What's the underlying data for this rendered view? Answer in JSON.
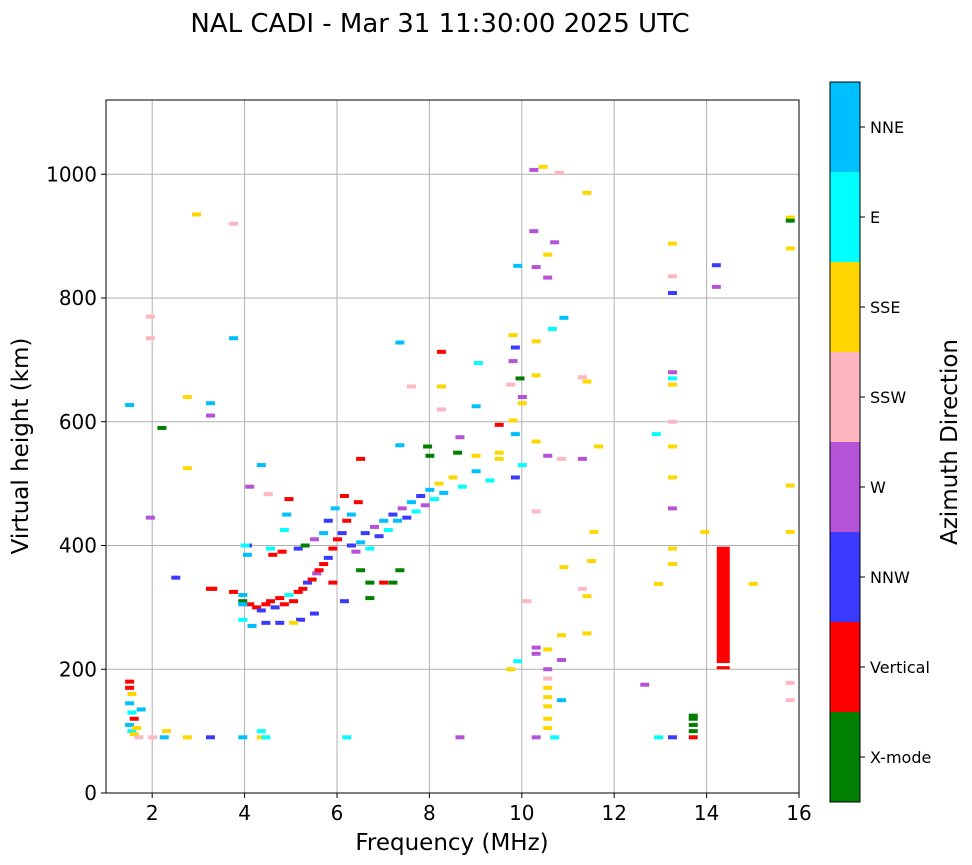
{
  "chart_data": {
    "type": "scatter",
    "title": "NAL CADI - Mar 31 11:30:00 2025 UTC",
    "xlabel": "Frequency (MHz)",
    "ylabel": "Virtual height (km)",
    "xlim": [
      1,
      16
    ],
    "ylim": [
      0,
      1120
    ],
    "xticks": [
      "2",
      "4",
      "6",
      "8",
      "10",
      "12",
      "14",
      "16"
    ],
    "yticks": [
      "0",
      "200",
      "400",
      "600",
      "800",
      "1000"
    ],
    "grid": true,
    "colorbar": {
      "label": "Azimuth Direction",
      "categories": [
        {
          "name": "X-mode",
          "color": "#008000"
        },
        {
          "name": "Vertical",
          "color": "#ff0000"
        },
        {
          "name": "NNW",
          "color": "#3a3aff"
        },
        {
          "name": "W",
          "color": "#b553d6"
        },
        {
          "name": "SSW",
          "color": "#ffb6c1"
        },
        {
          "name": "SSE",
          "color": "#ffd700"
        },
        {
          "name": "E",
          "color": "#00ffff"
        },
        {
          "name": "NNE",
          "color": "#00bfff"
        }
      ]
    },
    "points": [
      {
        "f": 1.5,
        "h": 180,
        "c": "Vertical"
      },
      {
        "f": 1.5,
        "h": 170,
        "c": "Vertical"
      },
      {
        "f": 1.55,
        "h": 160,
        "c": "SSE"
      },
      {
        "f": 1.5,
        "h": 145,
        "c": "NNE"
      },
      {
        "f": 1.55,
        "h": 130,
        "c": "E"
      },
      {
        "f": 1.6,
        "h": 120,
        "c": "Vertical"
      },
      {
        "f": 1.5,
        "h": 110,
        "c": "NNE"
      },
      {
        "f": 1.55,
        "h": 100,
        "c": "E"
      },
      {
        "f": 1.6,
        "h": 95,
        "c": "SSE"
      },
      {
        "f": 1.7,
        "h": 90,
        "c": "SSW"
      },
      {
        "f": 1.75,
        "h": 135,
        "c": "NNE"
      },
      {
        "f": 1.65,
        "h": 105,
        "c": "SSE"
      },
      {
        "f": 2.0,
        "h": 90,
        "c": "SSW"
      },
      {
        "f": 2.25,
        "h": 90,
        "c": "NNE"
      },
      {
        "f": 2.3,
        "h": 100,
        "c": "SSE"
      },
      {
        "f": 2.75,
        "h": 90,
        "c": "SSE"
      },
      {
        "f": 3.25,
        "h": 90,
        "c": "NNW"
      },
      {
        "f": 3.95,
        "h": 90,
        "c": "NNE"
      },
      {
        "f": 4.35,
        "h": 90,
        "c": "SSE"
      },
      {
        "f": 4.35,
        "h": 100,
        "c": "E"
      },
      {
        "f": 4.45,
        "h": 90,
        "c": "E"
      },
      {
        "f": 6.2,
        "h": 90,
        "c": "E"
      },
      {
        "f": 8.65,
        "h": 90,
        "c": "W"
      },
      {
        "f": 10.3,
        "h": 90,
        "c": "W"
      },
      {
        "f": 10.7,
        "h": 90,
        "c": "E"
      },
      {
        "f": 12.95,
        "h": 90,
        "c": "E"
      },
      {
        "f": 13.25,
        "h": 90,
        "c": "NNW"
      },
      {
        "f": 13.7,
        "h": 90,
        "c": "Vertical"
      },
      {
        "f": 13.7,
        "h": 100,
        "c": "X-mode"
      },
      {
        "f": 13.7,
        "h": 110,
        "c": "X-mode"
      },
      {
        "f": 13.7,
        "h": 120,
        "c": "X-mode"
      },
      {
        "f": 13.7,
        "h": 125,
        "c": "X-mode"
      },
      {
        "f": 1.5,
        "h": 627,
        "c": "NNE"
      },
      {
        "f": 2.2,
        "h": 590,
        "c": "X-mode"
      },
      {
        "f": 2.5,
        "h": 348,
        "c": "NNW"
      },
      {
        "f": 2.75,
        "h": 640,
        "c": "SSE"
      },
      {
        "f": 2.75,
        "h": 525,
        "c": "SSE"
      },
      {
        "f": 2.95,
        "h": 935,
        "c": "SSE"
      },
      {
        "f": 1.95,
        "h": 770,
        "c": "SSW"
      },
      {
        "f": 1.95,
        "h": 735,
        "c": "SSW"
      },
      {
        "f": 1.95,
        "h": 445,
        "c": "W"
      },
      {
        "f": 3.25,
        "h": 630,
        "c": "NNE"
      },
      {
        "f": 3.25,
        "h": 610,
        "c": "W"
      },
      {
        "f": 3.75,
        "h": 920,
        "c": "SSW"
      },
      {
        "f": 3.75,
        "h": 735,
        "c": "NNE"
      },
      {
        "f": 3.25,
        "h": 330,
        "c": "Vertical"
      },
      {
        "f": 4.35,
        "h": 530,
        "c": "NNE"
      },
      {
        "f": 4.1,
        "h": 495,
        "c": "W"
      },
      {
        "f": 4.5,
        "h": 483,
        "c": "SSW"
      },
      {
        "f": 3.75,
        "h": 325,
        "c": "Vertical"
      },
      {
        "f": 3.95,
        "h": 320,
        "c": "NNE"
      },
      {
        "f": 3.95,
        "h": 310,
        "c": "X-mode"
      },
      {
        "f": 4.1,
        "h": 305,
        "c": "Vertical"
      },
      {
        "f": 4.25,
        "h": 300,
        "c": "Vertical"
      },
      {
        "f": 4.35,
        "h": 295,
        "c": "NNW"
      },
      {
        "f": 4.45,
        "h": 305,
        "c": "Vertical"
      },
      {
        "f": 4.55,
        "h": 310,
        "c": "Vertical"
      },
      {
        "f": 4.65,
        "h": 300,
        "c": "NNW"
      },
      {
        "f": 4.75,
        "h": 315,
        "c": "Vertical"
      },
      {
        "f": 4.85,
        "h": 305,
        "c": "Vertical"
      },
      {
        "f": 4.95,
        "h": 320,
        "c": "E"
      },
      {
        "f": 5.05,
        "h": 310,
        "c": "Vertical"
      },
      {
        "f": 5.15,
        "h": 325,
        "c": "Vertical"
      },
      {
        "f": 5.25,
        "h": 330,
        "c": "Vertical"
      },
      {
        "f": 5.35,
        "h": 340,
        "c": "NNW"
      },
      {
        "f": 5.45,
        "h": 345,
        "c": "Vertical"
      },
      {
        "f": 5.55,
        "h": 355,
        "c": "W"
      },
      {
        "f": 5.6,
        "h": 360,
        "c": "Vertical"
      },
      {
        "f": 5.7,
        "h": 370,
        "c": "Vertical"
      },
      {
        "f": 5.8,
        "h": 380,
        "c": "NNW"
      },
      {
        "f": 5.9,
        "h": 395,
        "c": "Vertical"
      },
      {
        "f": 6.0,
        "h": 410,
        "c": "Vertical"
      },
      {
        "f": 6.1,
        "h": 420,
        "c": "NNW"
      },
      {
        "f": 6.2,
        "h": 440,
        "c": "Vertical"
      },
      {
        "f": 6.3,
        "h": 400,
        "c": "NNW"
      },
      {
        "f": 6.4,
        "h": 390,
        "c": "W"
      },
      {
        "f": 6.5,
        "h": 405,
        "c": "NNE"
      },
      {
        "f": 6.6,
        "h": 420,
        "c": "NNW"
      },
      {
        "f": 6.7,
        "h": 395,
        "c": "E"
      },
      {
        "f": 6.8,
        "h": 430,
        "c": "W"
      },
      {
        "f": 6.9,
        "h": 415,
        "c": "NNW"
      },
      {
        "f": 7.0,
        "h": 440,
        "c": "NNE"
      },
      {
        "f": 7.1,
        "h": 425,
        "c": "E"
      },
      {
        "f": 7.2,
        "h": 450,
        "c": "NNW"
      },
      {
        "f": 7.3,
        "h": 440,
        "c": "NNE"
      },
      {
        "f": 7.4,
        "h": 460,
        "c": "W"
      },
      {
        "f": 7.5,
        "h": 445,
        "c": "NNW"
      },
      {
        "f": 7.6,
        "h": 470,
        "c": "NNE"
      },
      {
        "f": 7.7,
        "h": 455,
        "c": "E"
      },
      {
        "f": 7.8,
        "h": 480,
        "c": "NNW"
      },
      {
        "f": 7.9,
        "h": 465,
        "c": "W"
      },
      {
        "f": 8.0,
        "h": 490,
        "c": "NNE"
      },
      {
        "f": 8.1,
        "h": 475,
        "c": "E"
      },
      {
        "f": 8.2,
        "h": 500,
        "c": "SSE"
      },
      {
        "f": 8.3,
        "h": 485,
        "c": "NNE"
      },
      {
        "f": 8.5,
        "h": 510,
        "c": "SSE"
      },
      {
        "f": 8.7,
        "h": 495,
        "c": "E"
      },
      {
        "f": 9.0,
        "h": 520,
        "c": "NNE"
      },
      {
        "f": 9.3,
        "h": 505,
        "c": "E"
      },
      {
        "f": 8.0,
        "h": 545,
        "c": "X-mode"
      },
      {
        "f": 7.95,
        "h": 560,
        "c": "X-mode"
      },
      {
        "f": 8.65,
        "h": 575,
        "c": "W"
      },
      {
        "f": 8.6,
        "h": 550,
        "c": "X-mode"
      },
      {
        "f": 8.25,
        "h": 620,
        "c": "SSW"
      },
      {
        "f": 8.25,
        "h": 657,
        "c": "SSE"
      },
      {
        "f": 8.25,
        "h": 713,
        "c": "Vertical"
      },
      {
        "f": 7.35,
        "h": 728,
        "c": "NNE"
      },
      {
        "f": 7.35,
        "h": 562,
        "c": "NNE"
      },
      {
        "f": 7.6,
        "h": 657,
        "c": "SSW"
      },
      {
        "f": 6.5,
        "h": 540,
        "c": "Vertical"
      },
      {
        "f": 6.45,
        "h": 470,
        "c": "Vertical"
      },
      {
        "f": 6.15,
        "h": 480,
        "c": "Vertical"
      },
      {
        "f": 6.3,
        "h": 450,
        "c": "NNE"
      },
      {
        "f": 6.5,
        "h": 360,
        "c": "X-mode"
      },
      {
        "f": 6.7,
        "h": 340,
        "c": "X-mode"
      },
      {
        "f": 6.7,
        "h": 315,
        "c": "X-mode"
      },
      {
        "f": 7.0,
        "h": 340,
        "c": "Vertical"
      },
      {
        "f": 7.2,
        "h": 340,
        "c": "X-mode"
      },
      {
        "f": 7.35,
        "h": 360,
        "c": "X-mode"
      },
      {
        "f": 6.15,
        "h": 310,
        "c": "NNW"
      },
      {
        "f": 5.9,
        "h": 340,
        "c": "Vertical"
      },
      {
        "f": 5.5,
        "h": 290,
        "c": "NNW"
      },
      {
        "f": 5.2,
        "h": 280,
        "c": "NNW"
      },
      {
        "f": 4.75,
        "h": 275,
        "c": "NNW"
      },
      {
        "f": 4.45,
        "h": 275,
        "c": "NNW"
      },
      {
        "f": 4.15,
        "h": 270,
        "c": "NNE"
      },
      {
        "f": 5.05,
        "h": 275,
        "c": "SSE"
      },
      {
        "f": 4.9,
        "h": 450,
        "c": "NNE"
      },
      {
        "f": 4.85,
        "h": 425,
        "c": "E"
      },
      {
        "f": 4.55,
        "h": 395,
        "c": "E"
      },
      {
        "f": 4.6,
        "h": 385,
        "c": "Vertical"
      },
      {
        "f": 4.8,
        "h": 390,
        "c": "Vertical"
      },
      {
        "f": 4.05,
        "h": 385,
        "c": "NNE"
      },
      {
        "f": 4.05,
        "h": 400,
        "c": "NNW"
      },
      {
        "f": 5.15,
        "h": 395,
        "c": "NNW"
      },
      {
        "f": 5.3,
        "h": 400,
        "c": "X-mode"
      },
      {
        "f": 5.5,
        "h": 410,
        "c": "W"
      },
      {
        "f": 5.7,
        "h": 420,
        "c": "NNE"
      },
      {
        "f": 5.8,
        "h": 440,
        "c": "NNW"
      },
      {
        "f": 5.95,
        "h": 460,
        "c": "NNE"
      },
      {
        "f": 4.95,
        "h": 475,
        "c": "Vertical"
      },
      {
        "f": 4.0,
        "h": 400,
        "c": "E"
      },
      {
        "f": 3.95,
        "h": 305,
        "c": "NNE"
      },
      {
        "f": 3.95,
        "h": 280,
        "c": "E"
      },
      {
        "f": 3.3,
        "h": 330,
        "c": "Vertical"
      },
      {
        "f": 9.0,
        "h": 625,
        "c": "NNE"
      },
      {
        "f": 9.0,
        "h": 545,
        "c": "SSE"
      },
      {
        "f": 9.05,
        "h": 695,
        "c": "E"
      },
      {
        "f": 9.5,
        "h": 595,
        "c": "Vertical"
      },
      {
        "f": 9.5,
        "h": 550,
        "c": "SSE"
      },
      {
        "f": 9.5,
        "h": 540,
        "c": "SSE"
      },
      {
        "f": 9.8,
        "h": 740,
        "c": "SSE"
      },
      {
        "f": 9.8,
        "h": 698,
        "c": "W"
      },
      {
        "f": 9.8,
        "h": 602,
        "c": "SSE"
      },
      {
        "f": 9.85,
        "h": 720,
        "c": "NNW"
      },
      {
        "f": 9.85,
        "h": 510,
        "c": "NNW"
      },
      {
        "f": 9.75,
        "h": 660,
        "c": "SSW"
      },
      {
        "f": 9.9,
        "h": 852,
        "c": "NNE"
      },
      {
        "f": 9.95,
        "h": 670,
        "c": "X-mode"
      },
      {
        "f": 10.0,
        "h": 640,
        "c": "W"
      },
      {
        "f": 10.0,
        "h": 630,
        "c": "SSE"
      },
      {
        "f": 10.0,
        "h": 530,
        "c": "E"
      },
      {
        "f": 9.85,
        "h": 580,
        "c": "NNE"
      },
      {
        "f": 9.75,
        "h": 200,
        "c": "SSE"
      },
      {
        "f": 9.9,
        "h": 213,
        "c": "E"
      },
      {
        "f": 10.1,
        "h": 310,
        "c": "SSW"
      },
      {
        "f": 10.25,
        "h": 1007,
        "c": "W"
      },
      {
        "f": 10.45,
        "h": 1012,
        "c": "SSE"
      },
      {
        "f": 10.8,
        "h": 1002,
        "c": "SSW"
      },
      {
        "f": 10.25,
        "h": 908,
        "c": "W"
      },
      {
        "f": 10.7,
        "h": 890,
        "c": "W"
      },
      {
        "f": 10.55,
        "h": 870,
        "c": "SSE"
      },
      {
        "f": 10.3,
        "h": 850,
        "c": "W"
      },
      {
        "f": 10.55,
        "h": 833,
        "c": "W"
      },
      {
        "f": 10.65,
        "h": 750,
        "c": "E"
      },
      {
        "f": 10.9,
        "h": 768,
        "c": "NNE"
      },
      {
        "f": 10.3,
        "h": 730,
        "c": "SSE"
      },
      {
        "f": 10.3,
        "h": 675,
        "c": "SSE"
      },
      {
        "f": 10.3,
        "h": 568,
        "c": "SSE"
      },
      {
        "f": 10.3,
        "h": 455,
        "c": "SSW"
      },
      {
        "f": 10.55,
        "h": 545,
        "c": "W"
      },
      {
        "f": 10.85,
        "h": 540,
        "c": "SSW"
      },
      {
        "f": 11.3,
        "h": 540,
        "c": "W"
      },
      {
        "f": 11.3,
        "h": 672,
        "c": "SSW"
      },
      {
        "f": 11.4,
        "h": 665,
        "c": "SSE"
      },
      {
        "f": 11.4,
        "h": 970,
        "c": "SSE"
      },
      {
        "f": 11.65,
        "h": 560,
        "c": "SSE"
      },
      {
        "f": 11.55,
        "h": 422,
        "c": "SSE"
      },
      {
        "f": 11.5,
        "h": 375,
        "c": "SSE"
      },
      {
        "f": 10.9,
        "h": 365,
        "c": "SSE"
      },
      {
        "f": 11.3,
        "h": 330,
        "c": "SSW"
      },
      {
        "f": 11.4,
        "h": 318,
        "c": "SSE"
      },
      {
        "f": 11.4,
        "h": 258,
        "c": "SSE"
      },
      {
        "f": 10.85,
        "h": 255,
        "c": "SSE"
      },
      {
        "f": 10.3,
        "h": 235,
        "c": "W"
      },
      {
        "f": 10.3,
        "h": 225,
        "c": "W"
      },
      {
        "f": 10.55,
        "h": 232,
        "c": "SSE"
      },
      {
        "f": 10.85,
        "h": 215,
        "c": "W"
      },
      {
        "f": 10.55,
        "h": 200,
        "c": "W"
      },
      {
        "f": 10.55,
        "h": 185,
        "c": "SSW"
      },
      {
        "f": 10.55,
        "h": 170,
        "c": "SSE"
      },
      {
        "f": 10.55,
        "h": 155,
        "c": "SSE"
      },
      {
        "f": 10.55,
        "h": 140,
        "c": "SSE"
      },
      {
        "f": 10.85,
        "h": 150,
        "c": "NNE"
      },
      {
        "f": 10.55,
        "h": 120,
        "c": "SSE"
      },
      {
        "f": 10.55,
        "h": 105,
        "c": "SSE"
      },
      {
        "f": 12.65,
        "h": 175,
        "c": "W"
      },
      {
        "f": 12.9,
        "h": 580,
        "c": "E"
      },
      {
        "f": 12.95,
        "h": 338,
        "c": "SSE"
      },
      {
        "f": 13.25,
        "h": 888,
        "c": "SSE"
      },
      {
        "f": 13.25,
        "h": 835,
        "c": "SSW"
      },
      {
        "f": 13.25,
        "h": 808,
        "c": "NNW"
      },
      {
        "f": 13.25,
        "h": 680,
        "c": "W"
      },
      {
        "f": 13.25,
        "h": 670,
        "c": "E"
      },
      {
        "f": 13.25,
        "h": 660,
        "c": "SSE"
      },
      {
        "f": 13.25,
        "h": 600,
        "c": "SSW"
      },
      {
        "f": 13.25,
        "h": 560,
        "c": "SSE"
      },
      {
        "f": 13.25,
        "h": 510,
        "c": "SSE"
      },
      {
        "f": 13.25,
        "h": 460,
        "c": "W"
      },
      {
        "f": 13.25,
        "h": 395,
        "c": "SSE"
      },
      {
        "f": 13.25,
        "h": 370,
        "c": "SSE"
      },
      {
        "f": 14.2,
        "h": 853,
        "c": "NNW"
      },
      {
        "f": 14.2,
        "h": 818,
        "c": "W"
      },
      {
        "f": 13.95,
        "h": 422,
        "c": "SSE"
      },
      {
        "f": 15.0,
        "h": 338,
        "c": "SSE"
      },
      {
        "f": 15.8,
        "h": 930,
        "c": "SSE"
      },
      {
        "f": 15.8,
        "h": 925,
        "c": "X-mode"
      },
      {
        "f": 15.8,
        "h": 880,
        "c": "SSE"
      },
      {
        "f": 15.8,
        "h": 497,
        "c": "SSE"
      },
      {
        "f": 15.8,
        "h": 422,
        "c": "SSE"
      },
      {
        "f": 15.8,
        "h": 178,
        "c": "SSW"
      },
      {
        "f": 15.8,
        "h": 150,
        "c": "SSW"
      }
    ],
    "bars": [
      {
        "f": 14.35,
        "h_from": 210,
        "h_to": 398,
        "c": "Vertical"
      },
      {
        "f": 14.35,
        "h_from": 200,
        "h_to": 205,
        "c": "Vertical"
      }
    ]
  }
}
